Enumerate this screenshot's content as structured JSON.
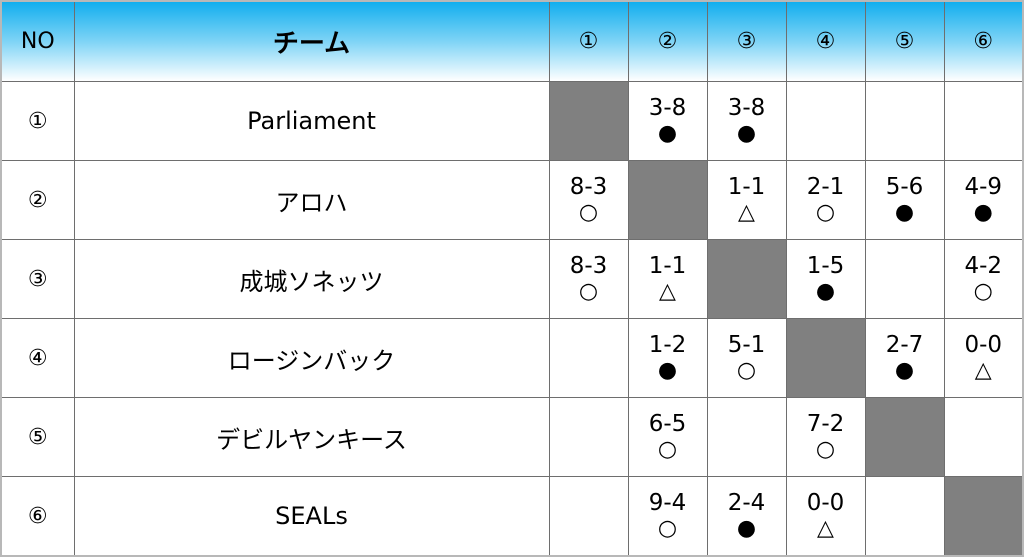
{
  "header": {
    "no": "NO",
    "team": "チーム",
    "cols": [
      "①",
      "②",
      "③",
      "④",
      "⑤",
      "⑥"
    ]
  },
  "rows": [
    {
      "no": "①",
      "team": "Parliament",
      "cells": [
        {
          "self": true
        },
        {
          "score": "3-8",
          "mark": "●"
        },
        {
          "score": "3-8",
          "mark": "●"
        },
        {},
        {},
        {}
      ]
    },
    {
      "no": "②",
      "team": "アロハ",
      "cells": [
        {
          "score": "8-3",
          "mark": "○"
        },
        {
          "self": true
        },
        {
          "score": "1-1",
          "mark": "△"
        },
        {
          "score": "2-1",
          "mark": "○"
        },
        {
          "score": "5-6",
          "mark": "●"
        },
        {
          "score": "4-9",
          "mark": "●"
        }
      ]
    },
    {
      "no": "③",
      "team": "成城ソネッツ",
      "cells": [
        {
          "score": "8-3",
          "mark": "○"
        },
        {
          "score": "1-1",
          "mark": "△"
        },
        {
          "self": true
        },
        {
          "score": "1-5",
          "mark": "●"
        },
        {},
        {
          "score": "4-2",
          "mark": "○"
        }
      ]
    },
    {
      "no": "④",
      "team": "ロージンバック",
      "cells": [
        {},
        {
          "score": "1-2",
          "mark": "●"
        },
        {
          "score": "5-1",
          "mark": "○"
        },
        {
          "self": true
        },
        {
          "score": "2-7",
          "mark": "●"
        },
        {
          "score": "0-0",
          "mark": "△"
        }
      ]
    },
    {
      "no": "⑤",
      "team": "デビルヤンキース",
      "cells": [
        {},
        {
          "score": "6-5",
          "mark": "○"
        },
        {},
        {
          "score": "7-2",
          "mark": "○"
        },
        {
          "self": true
        },
        {}
      ]
    },
    {
      "no": "⑥",
      "team": "SEALs",
      "cells": [
        {},
        {
          "score": "9-4",
          "mark": "○"
        },
        {
          "score": "2-4",
          "mark": "●"
        },
        {
          "score": "0-0",
          "mark": "△"
        },
        {},
        {
          "self": true
        }
      ]
    }
  ],
  "colors": {
    "header_top": "#12aeee",
    "self_cell": "#808080"
  }
}
